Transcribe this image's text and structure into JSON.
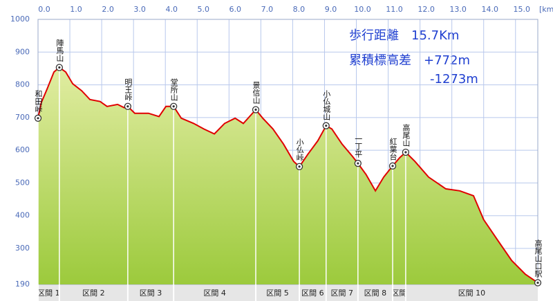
{
  "chart_data": {
    "type": "area",
    "x_unit": "[km]",
    "info": [
      "歩行距離　15.7Km",
      "累積標高差　+772m",
      "-1273m"
    ],
    "x": [
      0,
      0.1,
      0.28,
      0.5,
      0.67,
      0.87,
      1.09,
      1.37,
      1.63,
      1.95,
      2.17,
      2.5,
      2.71,
      2.82,
      3.04,
      3.47,
      3.8,
      4.02,
      4.26,
      4.5,
      4.89,
      5.21,
      5.54,
      5.86,
      6.19,
      6.45,
      6.84,
      7.06,
      7.38,
      7.71,
      8.03,
      8.21,
      8.47,
      8.79,
      9.05,
      9.23,
      9.55,
      9.88,
      10.05,
      10.31,
      10.6,
      10.86,
      11.14,
      11.36,
      11.55,
      11.84,
      12.27,
      12.81,
      13.25,
      13.68,
      14.0,
      14.44,
      14.88,
      15.31,
      15.7
    ],
    "values": [
      698,
      745,
      786,
      839,
      853,
      839,
      803,
      782,
      755,
      749,
      734,
      740,
      730,
      734,
      713,
      713,
      703,
      734,
      734,
      698,
      682,
      665,
      650,
      682,
      698,
      682,
      724,
      698,
      665,
      619,
      566,
      550,
      587,
      629,
      675,
      665,
      619,
      581,
      560,
      525,
      476,
      518,
      552,
      577,
      594,
      566,
      518,
      482,
      476,
      461,
      388,
      325,
      263,
      221,
      195
    ],
    "line_color": "#e00000",
    "xlim": [
      0,
      15.7
    ],
    "ylim": [
      190,
      1000
    ],
    "xticks": [
      {
        "value": 0,
        "label": "0.0"
      },
      {
        "value": 1,
        "label": "1.0"
      },
      {
        "value": 2,
        "label": "2.0"
      },
      {
        "value": 3,
        "label": "3.0"
      },
      {
        "value": 4,
        "label": "4.0"
      },
      {
        "value": 5,
        "label": "5.0"
      },
      {
        "value": 6,
        "label": "6.0"
      },
      {
        "value": 7,
        "label": "7.0"
      },
      {
        "value": 8,
        "label": "8.0"
      },
      {
        "value": 9,
        "label": "9.0"
      },
      {
        "value": 10,
        "label": "10.0"
      },
      {
        "value": 11,
        "label": "11.0"
      },
      {
        "value": 12,
        "label": "12.0"
      },
      {
        "value": 13,
        "label": "13.0"
      },
      {
        "value": 14,
        "label": "14.0"
      },
      {
        "value": 15,
        "label": "15.0"
      }
    ],
    "yticks": [
      190,
      300,
      400,
      500,
      600,
      700,
      800,
      900,
      1000
    ],
    "grid": true,
    "peaks": [
      {
        "name": "和田峠",
        "x": 0,
        "value": 698
      },
      {
        "name": "陣馬山",
        "x": 0.67,
        "value": 853
      },
      {
        "name": "明王峠",
        "x": 2.82,
        "value": 734
      },
      {
        "name": "堂所山",
        "x": 4.26,
        "value": 734
      },
      {
        "name": "景信山",
        "x": 6.84,
        "value": 724
      },
      {
        "name": "小仏峠",
        "x": 8.21,
        "value": 550
      },
      {
        "name": "小仏城山",
        "x": 9.05,
        "value": 675
      },
      {
        "name": "一丁平",
        "x": 10.05,
        "value": 560
      },
      {
        "name": "紅葉台",
        "x": 11.14,
        "value": 552
      },
      {
        "name": "高尾山",
        "x": 11.55,
        "value": 594
      },
      {
        "name": "高尾山口駅",
        "x": 15.7,
        "value": 195
      }
    ],
    "sections": [
      "区間 1",
      "区間 2",
      "区間 3",
      "区間 4",
      "区間 5",
      "区間 6",
      "区間 7",
      "区間 8",
      "区間",
      "区間 10"
    ]
  }
}
